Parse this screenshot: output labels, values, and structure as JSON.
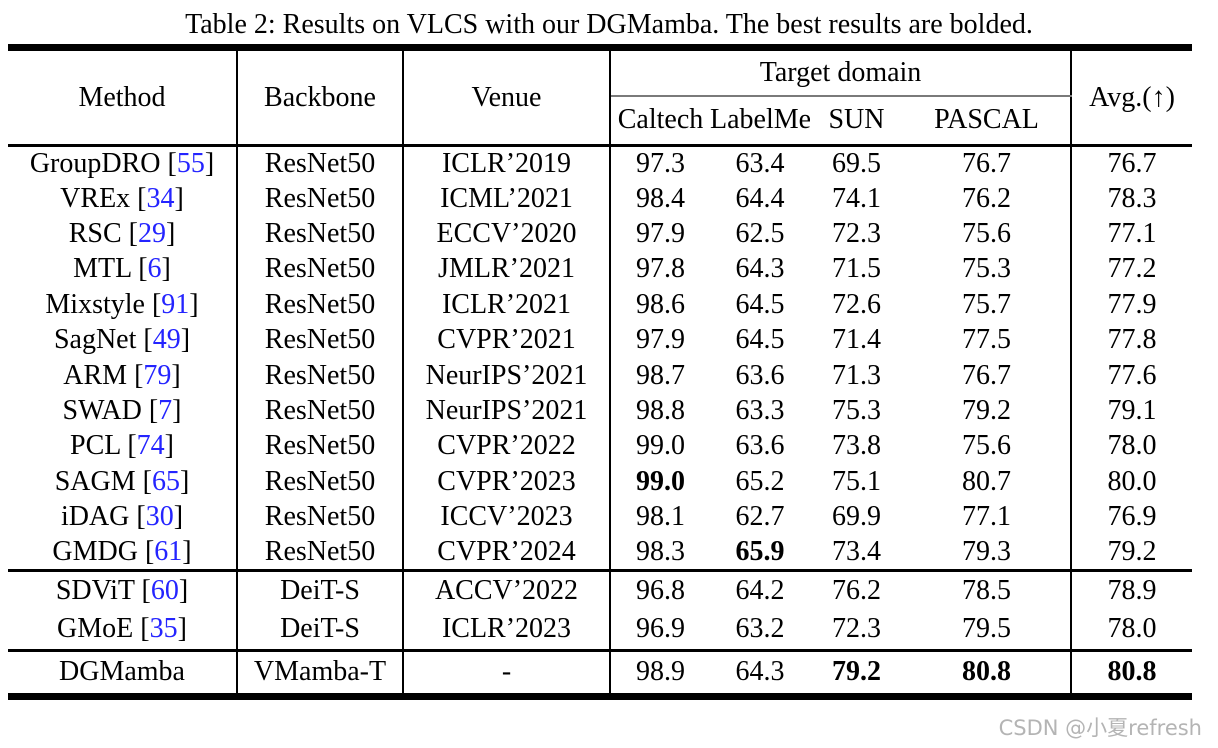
{
  "caption": "Table 2: Results on VLCS with our DGMamba. The best results are bolded.",
  "table": {
    "header": {
      "method": "Method",
      "backbone": "Backbone",
      "venue": "Venue",
      "target_domain": "Target domain",
      "domains": [
        "Caltech",
        "LabelMe",
        "SUN",
        "PASCAL"
      ],
      "avg": "Avg.(↑)"
    },
    "groups": [
      {
        "rows": [
          {
            "method": "GroupDRO",
            "cite": "55",
            "backbone": "ResNet50",
            "venue": "ICLR’2019",
            "values": [
              "97.3",
              "63.4",
              "69.5",
              "76.7"
            ],
            "bold": [],
            "avg": "76.7",
            "avg_bold": false
          },
          {
            "method": "VREx",
            "cite": "34",
            "backbone": "ResNet50",
            "venue": "ICML’2021",
            "values": [
              "98.4",
              "64.4",
              "74.1",
              "76.2"
            ],
            "bold": [],
            "avg": "78.3",
            "avg_bold": false
          },
          {
            "method": "RSC",
            "cite": "29",
            "backbone": "ResNet50",
            "venue": "ECCV’2020",
            "values": [
              "97.9",
              "62.5",
              "72.3",
              "75.6"
            ],
            "bold": [],
            "avg": "77.1",
            "avg_bold": false
          },
          {
            "method": "MTL",
            "cite": "6",
            "backbone": "ResNet50",
            "venue": "JMLR’2021",
            "values": [
              "97.8",
              "64.3",
              "71.5",
              "75.3"
            ],
            "bold": [],
            "avg": "77.2",
            "avg_bold": false
          },
          {
            "method": "Mixstyle",
            "cite": "91",
            "backbone": "ResNet50",
            "venue": "ICLR’2021",
            "values": [
              "98.6",
              "64.5",
              "72.6",
              "75.7"
            ],
            "bold": [],
            "avg": "77.9",
            "avg_bold": false
          },
          {
            "method": "SagNet",
            "cite": "49",
            "backbone": "ResNet50",
            "venue": "CVPR’2021",
            "values": [
              "97.9",
              "64.5",
              "71.4",
              "77.5"
            ],
            "bold": [],
            "avg": "77.8",
            "avg_bold": false
          },
          {
            "method": "ARM",
            "cite": "79",
            "backbone": "ResNet50",
            "venue": "NeurIPS’2021",
            "values": [
              "98.7",
              "63.6",
              "71.3",
              "76.7"
            ],
            "bold": [],
            "avg": "77.6",
            "avg_bold": false
          },
          {
            "method": "SWAD",
            "cite": "7",
            "backbone": "ResNet50",
            "venue": "NeurIPS’2021",
            "values": [
              "98.8",
              "63.3",
              "75.3",
              "79.2"
            ],
            "bold": [],
            "avg": "79.1",
            "avg_bold": false
          },
          {
            "method": "PCL",
            "cite": "74",
            "backbone": "ResNet50",
            "venue": "CVPR’2022",
            "values": [
              "99.0",
              "63.6",
              "73.8",
              "75.6"
            ],
            "bold": [],
            "avg": "78.0",
            "avg_bold": false
          },
          {
            "method": "SAGM",
            "cite": "65",
            "backbone": "ResNet50",
            "venue": "CVPR’2023",
            "values": [
              "99.0",
              "65.2",
              "75.1",
              "80.7"
            ],
            "bold": [
              0
            ],
            "avg": "80.0",
            "avg_bold": false
          },
          {
            "method": "iDAG",
            "cite": "30",
            "backbone": "ResNet50",
            "venue": "ICCV’2023",
            "values": [
              "98.1",
              "62.7",
              "69.9",
              "77.1"
            ],
            "bold": [],
            "avg": "76.9",
            "avg_bold": false
          },
          {
            "method": "GMDG",
            "cite": "61",
            "backbone": "ResNet50",
            "venue": "CVPR’2024",
            "values": [
              "98.3",
              "65.9",
              "73.4",
              "79.3"
            ],
            "bold": [
              1
            ],
            "avg": "79.2",
            "avg_bold": false
          }
        ]
      },
      {
        "rows": [
          {
            "method": "SDViT",
            "cite": "60",
            "backbone": "DeiT-S",
            "venue": "ACCV’2022",
            "values": [
              "96.8",
              "64.2",
              "76.2",
              "78.5"
            ],
            "bold": [],
            "avg": "78.9",
            "avg_bold": false
          },
          {
            "method": "GMoE",
            "cite": "35",
            "backbone": "DeiT-S",
            "venue": "ICLR’2023",
            "values": [
              "96.9",
              "63.2",
              "72.3",
              "79.5"
            ],
            "bold": [],
            "avg": "78.0",
            "avg_bold": false
          }
        ]
      },
      {
        "rows": [
          {
            "method": "DGMamba",
            "cite": null,
            "backbone": "VMamba-T",
            "venue": "-",
            "values": [
              "98.9",
              "64.3",
              "79.2",
              "80.8"
            ],
            "bold": [
              2,
              3
            ],
            "avg": "80.8",
            "avg_bold": true
          }
        ]
      }
    ]
  },
  "watermark": {
    "text": "CSDN @小夏refresh"
  },
  "colors": {
    "citation_blue": "#2424ff",
    "rule_black": "#000000",
    "cmidrule_gray": "#7a7a7a",
    "watermark_gray": "#b4b4b4"
  }
}
